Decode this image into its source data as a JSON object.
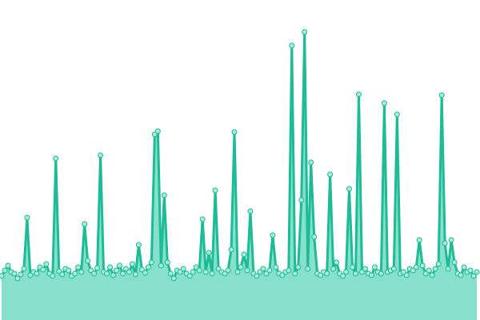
{
  "chart_data": {
    "type": "area",
    "values": [
      55,
      62,
      68,
      60,
      58,
      52,
      57,
      64,
      128,
      56,
      60,
      58,
      66,
      63,
      70,
      58,
      55,
      202,
      61,
      57,
      64,
      62,
      55,
      58,
      66,
      60,
      120,
      74,
      62,
      58,
      65,
      206,
      60,
      58,
      66,
      56,
      62,
      68,
      58,
      64,
      60,
      70,
      57,
      94,
      63,
      59,
      66,
      72,
      232,
      236,
      68,
      156,
      72,
      58,
      52,
      62,
      60,
      64,
      58,
      55,
      60,
      66,
      62,
      126,
      60,
      84,
      58,
      162,
      64,
      60,
      58,
      62,
      88,
      235,
      60,
      66,
      82,
      62,
      136,
      58,
      55,
      60,
      64,
      58,
      62,
      106,
      66,
      58,
      56,
      60,
      62,
      343,
      58,
      66,
      150,
      360,
      64,
      197,
      104,
      58,
      56,
      60,
      58,
      182,
      64,
      72,
      58,
      55,
      60,
      164,
      66,
      58,
      282,
      60,
      64,
      58,
      56,
      66,
      60,
      58,
      271,
      60,
      62,
      64,
      257,
      58,
      60,
      56,
      64,
      62,
      66,
      100,
      68,
      58,
      62,
      56,
      64,
      70,
      281,
      96,
      64,
      100,
      72,
      58,
      56,
      66,
      60,
      62,
      55,
      60
    ],
    "ylim": [
      0,
      400
    ],
    "color": "#1dbb96",
    "fill_color": "#86e0cc",
    "marker_color": "#a9ecd9"
  }
}
